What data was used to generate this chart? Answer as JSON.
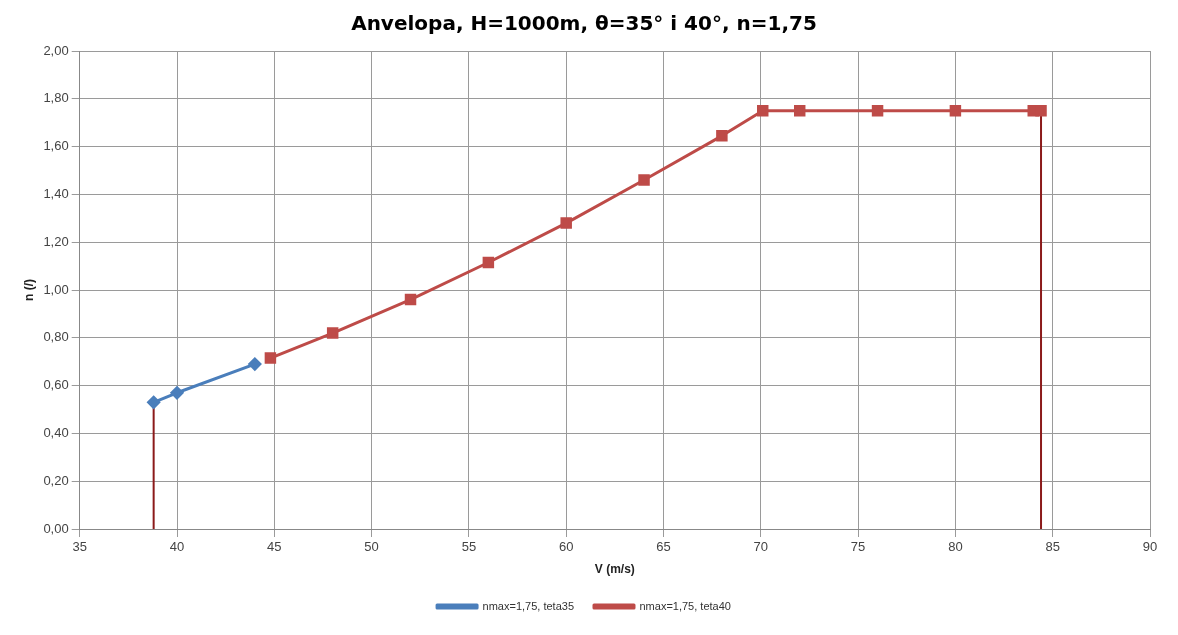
{
  "chart_data": {
    "type": "line",
    "title": "Anvelopa, H=1000m, θ=35° i 40°, n=1,75",
    "xlabel": "V (m/s)",
    "ylabel": "n (/)",
    "xlim": [
      35,
      90
    ],
    "xticks": [
      35,
      40,
      45,
      50,
      55,
      60,
      65,
      70,
      75,
      80,
      85,
      90
    ],
    "ylim": [
      0,
      2
    ],
    "yticks": [
      {
        "value": 0,
        "label": "0,00"
      },
      {
        "value": 0.2,
        "label": "0,20"
      },
      {
        "value": 0.4,
        "label": "0,40"
      },
      {
        "value": 0.6,
        "label": "0,60"
      },
      {
        "value": 0.8,
        "label": "0,80"
      },
      {
        "value": 1,
        "label": "1,00"
      },
      {
        "value": 1.2,
        "label": "1,20"
      },
      {
        "value": 1.4,
        "label": "1,40"
      },
      {
        "value": 1.6,
        "label": "1,60"
      },
      {
        "value": 1.8,
        "label": "1,80"
      },
      {
        "value": 2,
        "label": "2,00"
      }
    ],
    "grid": true,
    "legend": "bottom",
    "series": [
      {
        "name": "nmax=1,75, teta35",
        "color": "#4a7ebb",
        "marker": "diamond",
        "x": [
          38.8,
          40,
          44
        ],
        "values": [
          0.53,
          0.57,
          0.69
        ]
      },
      {
        "name": "nmax=1,75, teta40",
        "color": "#be4b48",
        "marker": "square",
        "x": [
          44.8,
          48,
          52,
          56,
          60,
          64,
          68,
          70.1,
          72,
          76,
          80,
          84,
          84.4
        ],
        "values": [
          0.715,
          0.82,
          0.96,
          1.115,
          1.28,
          1.46,
          1.645,
          1.75,
          1.75,
          1.75,
          1.75,
          1.75,
          1.75
        ]
      },
      {
        "color": "#8b1a1a",
        "marker": "none",
        "x": [
          38.8,
          38.8
        ],
        "values": [
          0,
          0.53
        ]
      },
      {
        "color": "#8b1a1a",
        "marker": "none",
        "x": [
          84.4,
          84.4
        ],
        "values": [
          0,
          1.75
        ]
      }
    ]
  }
}
